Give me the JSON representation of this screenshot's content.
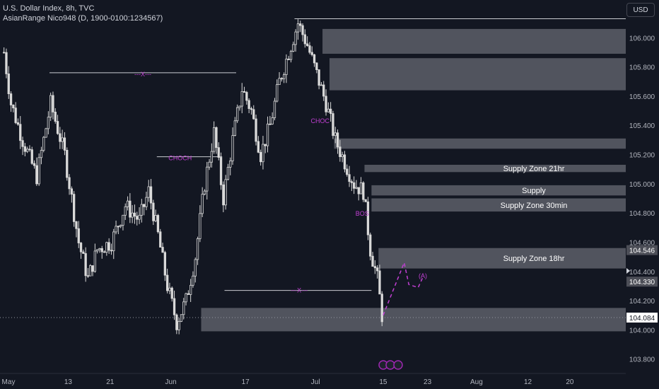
{
  "header": {
    "title": "U.S. Dollar Index, 8h, TVC",
    "indicator": "AsianRange Nico948 (D, 1900-0100:1234567)"
  },
  "currency_button": "USD",
  "colors": {
    "background": "#131722",
    "candle": "#d9d9d9",
    "zone": "#5d5f68",
    "marker": "#c13fd3",
    "axis_text": "#b2b5be",
    "line": "#c9cbd1"
  },
  "chart_data": {
    "type": "candlestick",
    "y_axis": {
      "min": 103.75,
      "max": 106.2,
      "ticks": [
        "106.000",
        "105.800",
        "105.600",
        "105.400",
        "105.200",
        "105.000",
        "104.800",
        "104.600",
        "104.400",
        "104.200",
        "104.000",
        "103.800"
      ]
    },
    "x_axis": {
      "ticks": [
        {
          "label": "May",
          "bar": 0
        },
        {
          "label": "13",
          "bar": 28
        },
        {
          "label": "21",
          "bar": 46
        },
        {
          "label": "Jun",
          "bar": 72
        },
        {
          "label": "17",
          "bar": 104
        },
        {
          "label": "Jul",
          "bar": 134
        },
        {
          "label": "15",
          "bar": 163
        },
        {
          "label": "23",
          "bar": 182
        },
        {
          "label": "Aug",
          "bar": 203
        },
        {
          "label": "12",
          "bar": 225
        },
        {
          "label": "20",
          "bar": 243
        }
      ]
    },
    "price_labels": [
      {
        "value": 104.546,
        "text": "104.546"
      },
      {
        "value": 104.33,
        "text": "104.330"
      },
      {
        "value": 104.084,
        "text": "104.084",
        "current": true
      }
    ],
    "zones": [
      {
        "bar_start": 137,
        "y_top": 106.06,
        "y_bottom": 105.89,
        "label": ""
      },
      {
        "bar_start": 140,
        "y_top": 105.86,
        "y_bottom": 105.64,
        "label": ""
      },
      {
        "bar_start": 142,
        "y_top": 105.31,
        "y_bottom": 105.24,
        "label": ""
      },
      {
        "bar_start": 155,
        "y_top": 105.13,
        "y_bottom": 105.08,
        "label": "Supply Zone 21hr"
      },
      {
        "bar_start": 158,
        "y_top": 104.99,
        "y_bottom": 104.92,
        "label": "Supply"
      },
      {
        "bar_start": 158,
        "y_top": 104.9,
        "y_bottom": 104.81,
        "label": "Supply Zone 30min"
      },
      {
        "bar_start": 161,
        "y_top": 104.56,
        "y_bottom": 104.42,
        "label": "Supply Zone 18hr"
      },
      {
        "bar_start": 85,
        "y_top": 104.15,
        "y_bottom": 103.99,
        "label": ""
      }
    ],
    "annotations": [
      {
        "text": "---X---",
        "bar": 60,
        "value": 105.75
      },
      {
        "text": "CHOCH",
        "bar": 76,
        "value": 105.175
      },
      {
        "text": "CHOC",
        "bar": 136,
        "value": 105.43
      },
      {
        "text": "BOS",
        "bar": 154,
        "value": 104.795
      },
      {
        "text": "---X---",
        "bar": 127,
        "value": 104.27
      },
      {
        "text": "(A)",
        "bar": 180,
        "value": 104.37
      }
    ],
    "structure_lines": [
      {
        "x1": 20,
        "x2": 100,
        "value": 105.76
      },
      {
        "x1": 66,
        "x2": 94,
        "value": 105.185
      },
      {
        "x1": 95,
        "x2": 158,
        "value": 104.27
      },
      {
        "x1": 125,
        "x2": 270,
        "value": 106.13
      }
    ],
    "projection": [
      {
        "bar": 163,
        "value": 104.1
      },
      {
        "bar": 172,
        "value": 104.46
      },
      {
        "bar": 174,
        "value": 104.31
      },
      {
        "bar": 178,
        "value": 104.29
      },
      {
        "bar": 180,
        "value": 104.36
      }
    ]
  }
}
